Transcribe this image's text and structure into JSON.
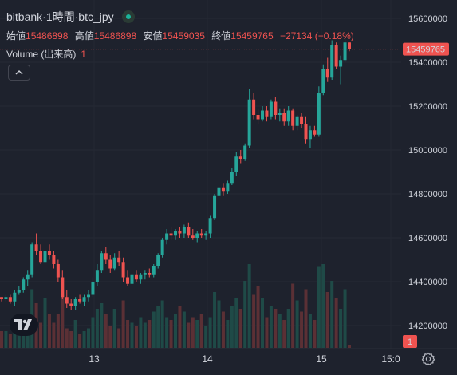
{
  "legend": {
    "exchange": "bitbank",
    "interval": "1時間",
    "symbol": "btc_jpy",
    "sep": " · ",
    "open_label": "始値",
    "open_value": "15486898",
    "high_label": "高値",
    "high_value": "15486898",
    "low_label": "安値",
    "low_value": "15459035",
    "close_label": "終値",
    "close_value": "15459765",
    "change": "−27134 (−0.18%)",
    "volume_label": "Volume (出来高)",
    "volume_value": "1",
    "collapse_icon": "chevron-up-icon"
  },
  "colors": {
    "background": "#1e222d",
    "up": "#26a69a",
    "down": "#ef5350",
    "up_volume": "#1f4a47",
    "down_volume": "#5b3035"
  },
  "chart_data": {
    "type": "candlestick",
    "ylim": [
      14080000,
      15680000
    ],
    "y_ticks": [
      14200000,
      14400000,
      14600000,
      14800000,
      15000000,
      15200000,
      15400000,
      15600000
    ],
    "y_tick_labels": [
      "14200000",
      "14400000",
      "14600000",
      "14800000",
      "15000000",
      "15200000",
      "15400000",
      "15600000"
    ],
    "x_labels": [
      "13",
      "14",
      "15",
      "15:0"
    ],
    "last_price": 15459765,
    "last_price_label": "15459765",
    "volume_last_label": "1",
    "candles": [
      [
        14330000,
        14330000,
        14310000,
        14320000
      ],
      [
        14320000,
        14340000,
        14310000,
        14330000
      ],
      [
        14330000,
        14340000,
        14300000,
        14310000
      ],
      [
        14310000,
        14360000,
        14290000,
        14350000
      ],
      [
        14350000,
        14380000,
        14340000,
        14360000
      ],
      [
        14360000,
        14420000,
        14350000,
        14410000
      ],
      [
        14410000,
        14450000,
        14380000,
        14430000
      ],
      [
        14430000,
        14580000,
        14420000,
        14570000
      ],
      [
        14570000,
        14620000,
        14520000,
        14540000
      ],
      [
        14540000,
        14570000,
        14480000,
        14490000
      ],
      [
        14490000,
        14560000,
        14470000,
        14540000
      ],
      [
        14540000,
        14570000,
        14500000,
        14520000
      ],
      [
        14520000,
        14540000,
        14460000,
        14480000
      ],
      [
        14480000,
        14500000,
        14400000,
        14420000
      ],
      [
        14420000,
        14450000,
        14320000,
        14330000
      ],
      [
        14330000,
        14360000,
        14280000,
        14300000
      ],
      [
        14300000,
        14320000,
        14270000,
        14290000
      ],
      [
        14290000,
        14330000,
        14270000,
        14320000
      ],
      [
        14320000,
        14340000,
        14300000,
        14310000
      ],
      [
        14310000,
        14340000,
        14290000,
        14330000
      ],
      [
        14330000,
        14360000,
        14310000,
        14340000
      ],
      [
        14340000,
        14420000,
        14330000,
        14400000
      ],
      [
        14400000,
        14480000,
        14380000,
        14450000
      ],
      [
        14450000,
        14540000,
        14440000,
        14530000
      ],
      [
        14530000,
        14560000,
        14480000,
        14500000
      ],
      [
        14500000,
        14520000,
        14440000,
        14460000
      ],
      [
        14460000,
        14530000,
        14450000,
        14510000
      ],
      [
        14510000,
        14540000,
        14470000,
        14490000
      ],
      [
        14490000,
        14510000,
        14400000,
        14420000
      ],
      [
        14420000,
        14450000,
        14380000,
        14390000
      ],
      [
        14390000,
        14440000,
        14370000,
        14430000
      ],
      [
        14430000,
        14450000,
        14400000,
        14410000
      ],
      [
        14410000,
        14440000,
        14390000,
        14430000
      ],
      [
        14430000,
        14450000,
        14410000,
        14440000
      ],
      [
        14440000,
        14460000,
        14420000,
        14430000
      ],
      [
        14430000,
        14480000,
        14420000,
        14470000
      ],
      [
        14470000,
        14530000,
        14460000,
        14520000
      ],
      [
        14520000,
        14600000,
        14510000,
        14590000
      ],
      [
        14590000,
        14640000,
        14570000,
        14620000
      ],
      [
        14620000,
        14650000,
        14590000,
        14610000
      ],
      [
        14610000,
        14640000,
        14590000,
        14630000
      ],
      [
        14630000,
        14650000,
        14600000,
        14620000
      ],
      [
        14620000,
        14660000,
        14600000,
        14650000
      ],
      [
        14650000,
        14670000,
        14600000,
        14610000
      ],
      [
        14610000,
        14640000,
        14590000,
        14600000
      ],
      [
        14600000,
        14630000,
        14580000,
        14620000
      ],
      [
        14620000,
        14640000,
        14600000,
        14610000
      ],
      [
        14610000,
        14630000,
        14590000,
        14620000
      ],
      [
        14620000,
        14700000,
        14600000,
        14690000
      ],
      [
        14690000,
        14800000,
        14680000,
        14790000
      ],
      [
        14790000,
        14850000,
        14770000,
        14830000
      ],
      [
        14830000,
        14850000,
        14790000,
        14810000
      ],
      [
        14810000,
        14860000,
        14800000,
        14850000
      ],
      [
        14850000,
        14920000,
        14840000,
        14900000
      ],
      [
        14900000,
        14990000,
        14880000,
        14970000
      ],
      [
        14970000,
        15000000,
        14940000,
        14960000
      ],
      [
        14960000,
        15030000,
        14950000,
        15020000
      ],
      [
        15020000,
        15280000,
        15010000,
        15230000
      ],
      [
        15230000,
        15260000,
        15140000,
        15160000
      ],
      [
        15160000,
        15190000,
        15120000,
        15140000
      ],
      [
        15140000,
        15200000,
        15130000,
        15180000
      ],
      [
        15180000,
        15200000,
        15130000,
        15150000
      ],
      [
        15150000,
        15230000,
        15140000,
        15220000
      ],
      [
        15220000,
        15240000,
        15140000,
        15160000
      ],
      [
        15160000,
        15190000,
        15130000,
        15170000
      ],
      [
        15170000,
        15190000,
        15110000,
        15130000
      ],
      [
        15130000,
        15200000,
        15110000,
        15180000
      ],
      [
        15180000,
        15190000,
        15090000,
        15110000
      ],
      [
        15110000,
        15160000,
        15090000,
        15150000
      ],
      [
        15150000,
        15170000,
        15100000,
        15120000
      ],
      [
        15120000,
        15150000,
        15030000,
        15050000
      ],
      [
        15050000,
        15110000,
        15010000,
        15090000
      ],
      [
        15090000,
        15110000,
        15060000,
        15070000
      ],
      [
        15070000,
        15290000,
        15060000,
        15260000
      ],
      [
        15260000,
        15390000,
        15250000,
        15370000
      ],
      [
        15370000,
        15420000,
        15310000,
        15330000
      ],
      [
        15330000,
        15500000,
        15320000,
        15480000
      ],
      [
        15480000,
        15490000,
        15370000,
        15380000
      ],
      [
        15380000,
        15430000,
        15300000,
        15410000
      ],
      [
        15410000,
        15510000,
        15400000,
        15490000
      ],
      [
        15490000,
        15490000,
        15450000,
        15460000
      ]
    ],
    "volumes": [
      6,
      6,
      5,
      7,
      9,
      10,
      6,
      21,
      16,
      9,
      18,
      12,
      9,
      12,
      19,
      7,
      6,
      10,
      5,
      6,
      7,
      11,
      14,
      16,
      12,
      8,
      14,
      7,
      17,
      10,
      9,
      8,
      11,
      9,
      10,
      13,
      15,
      17,
      11,
      10,
      12,
      15,
      13,
      9,
      11,
      10,
      12,
      8,
      11,
      20,
      17,
      13,
      10,
      15,
      18,
      14,
      24,
      30,
      19,
      22,
      18,
      11,
      15,
      14,
      12,
      10,
      14,
      23,
      17,
      13,
      21,
      12,
      10,
      29,
      30,
      20,
      24,
      18,
      14,
      21,
      1
    ]
  }
}
